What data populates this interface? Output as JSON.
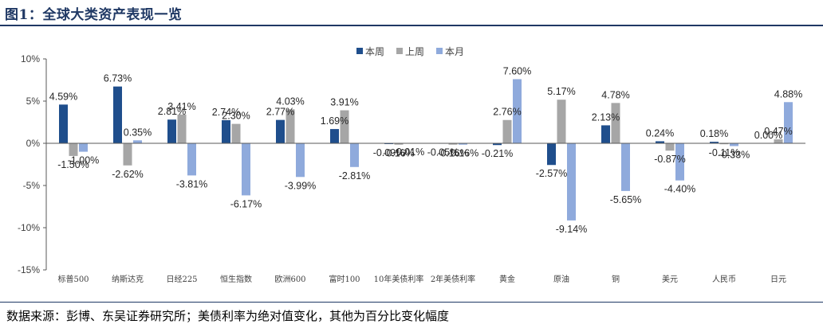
{
  "title": "图1：全球大类资产表现一览",
  "source": "数据来源：彭博、东吴证券研究所；美债利率为绝对值变化，其他为百分比变化幅度",
  "colors": {
    "本周": "#1f4e8c",
    "上周": "#a6a6a6",
    "本月": "#8faadc",
    "title": "#1f3864"
  },
  "chart_data": {
    "type": "bar",
    "categories": [
      "标普500",
      "纳斯达克",
      "日经225",
      "恒生指数",
      "欧洲600",
      "富时100",
      "10年美债利率",
      "2年美债利率",
      "黄金",
      "原油",
      "铜",
      "美元",
      "人民币",
      "日元"
    ],
    "series": [
      {
        "name": "本周",
        "values": [
          4.59,
          6.73,
          2.81,
          2.74,
          2.77,
          1.69,
          -0.09,
          -0.05,
          -0.21,
          -2.57,
          2.13,
          0.24,
          0.18,
          0.0
        ],
        "labels": [
          "4.59%",
          "6.73%",
          "2.81%",
          "2.74%",
          "2.77%",
          "1.69%",
          "-0.09%",
          "-0.05%",
          "-0.21%",
          "-2.57%",
          "2.13%",
          "0.24%",
          "0.18%",
          "0.00%"
        ]
      },
      {
        "name": "上周",
        "values": [
          -1.5,
          -2.62,
          3.41,
          2.3,
          4.03,
          3.91,
          -0.16,
          -0.16,
          2.76,
          5.17,
          4.78,
          -0.87,
          -0.11,
          0.47
        ],
        "labels": [
          "-1.50%",
          "-2.62%",
          "3.41%",
          "2.30%",
          "4.03%",
          "3.91%",
          "-0.16%",
          "-0.16%",
          "2.76%",
          "5.17%",
          "4.78%",
          "-0.87%",
          "-0.11%",
          "0.47%"
        ]
      },
      {
        "name": "本月",
        "values": [
          -1.0,
          0.35,
          -3.81,
          -6.17,
          -3.99,
          -2.81,
          -0.01,
          -0.16,
          7.6,
          -9.14,
          -5.65,
          -4.4,
          -0.33,
          4.88
        ],
        "labels": [
          "-1.00%",
          "0.35%",
          "-3.81%",
          "-6.17%",
          "-3.99%",
          "-2.81%",
          "-0.01%",
          "-0.16%",
          "7.60%",
          "-9.14%",
          "-5.65%",
          "-4.40%",
          "-0.33%",
          "4.88%"
        ]
      }
    ],
    "ylim": [
      -15,
      10
    ],
    "yticks": [
      10,
      5,
      0,
      -5,
      -10,
      -15
    ],
    "ytick_labels": [
      "10%",
      "5%",
      "0%",
      "-5%",
      "-10%",
      "-15%"
    ],
    "grid": false,
    "legend": "top-center"
  }
}
